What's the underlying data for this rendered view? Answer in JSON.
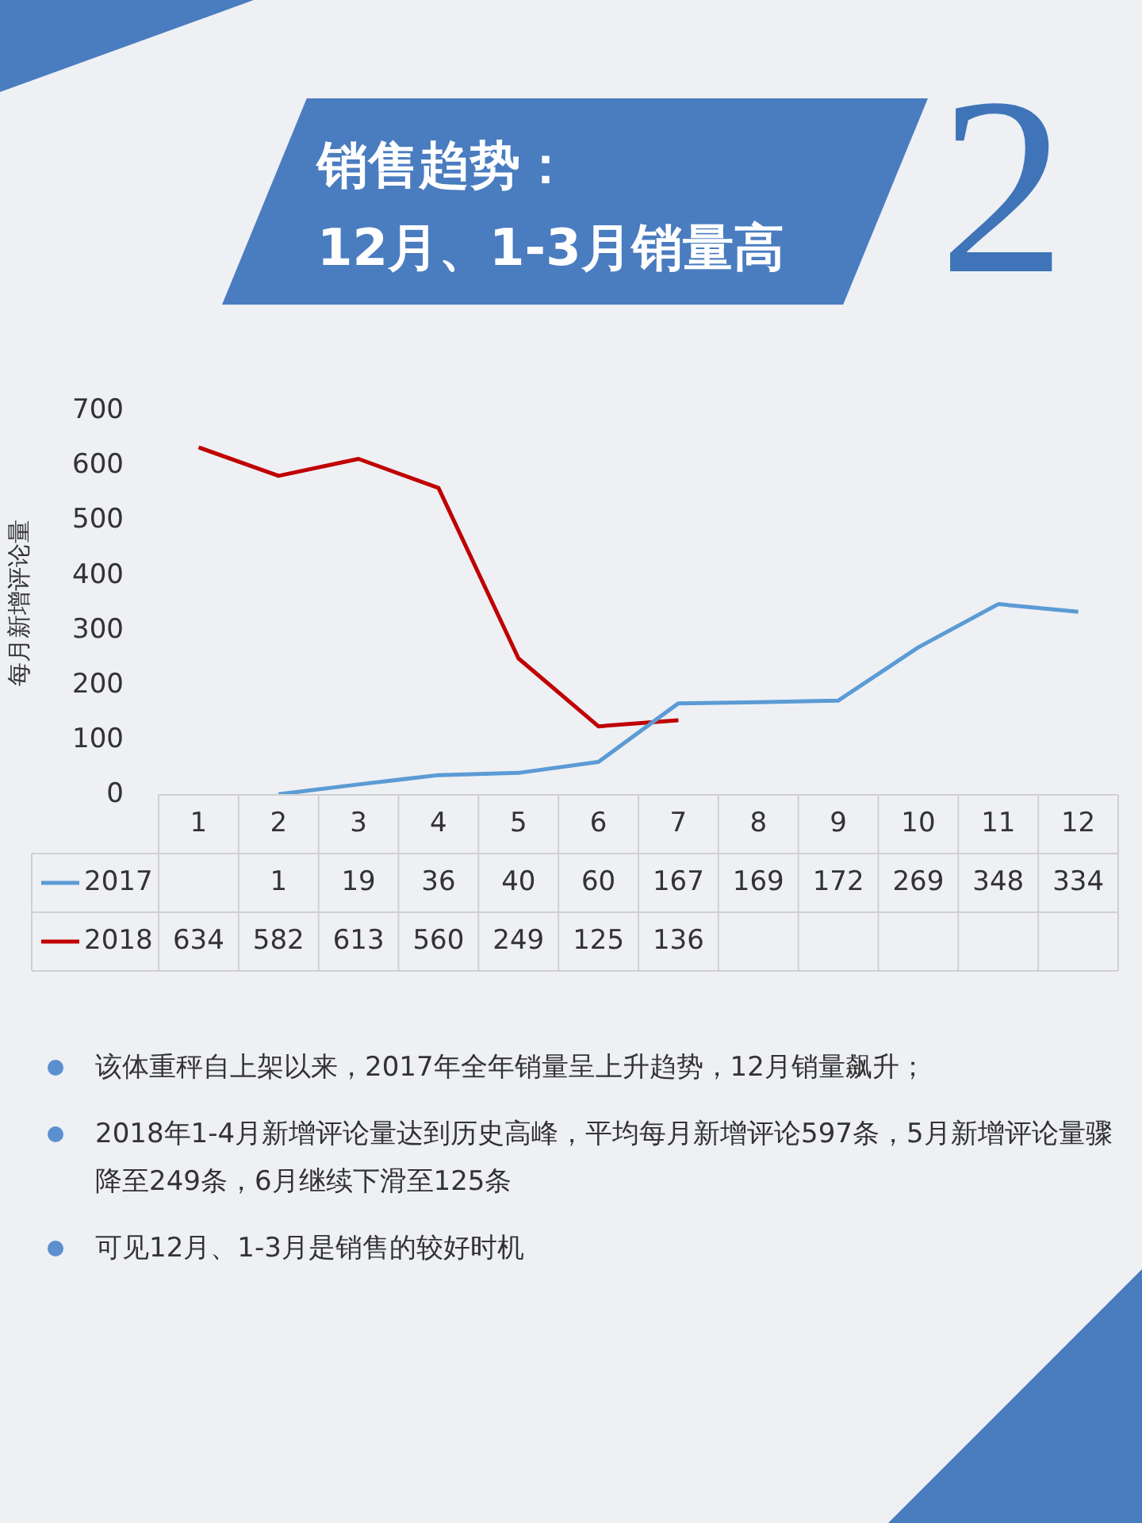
{
  "chart_data": {
    "type": "line",
    "title": "销售趋势：\n12月、1-3月销量高",
    "ylabel": "每月新增评论量",
    "categories": [
      "1",
      "2",
      "3",
      "4",
      "5",
      "6",
      "7",
      "8",
      "9",
      "10",
      "11",
      "12"
    ],
    "series": [
      {
        "name": "2017",
        "color": "#5b9bd5",
        "values": [
          null,
          1,
          19,
          36,
          40,
          60,
          167,
          169,
          172,
          269,
          348,
          334
        ]
      },
      {
        "name": "2018",
        "color": "#c00000",
        "values": [
          634,
          582,
          613,
          560,
          249,
          125,
          136,
          null,
          null,
          null,
          null,
          null
        ]
      }
    ],
    "ylim": [
      0,
      700
    ],
    "yticks": [
      0,
      100,
      200,
      300,
      400,
      500,
      600,
      700
    ],
    "grid": false,
    "legend": "bottom",
    "data_labels": true,
    "marker": "none",
    "annotations": [
      "2",
      "该体重秤自上架以来，2017年全年销量呈上升趋势，12月销量飙升；",
      "2018年1-4月新增评论量达到历史高峰，平均每月新增评论597条，5月新增评论量骤降至249条，6月继续下滑至125条",
      "可见12月、1-3月是销售的较好时机"
    ]
  }
}
